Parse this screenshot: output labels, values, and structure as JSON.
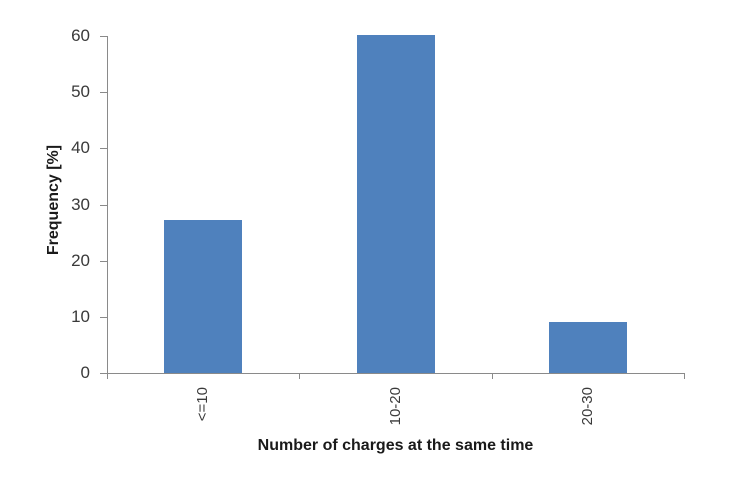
{
  "chart_data": {
    "type": "bar",
    "title": "",
    "categories": [
      "<=10",
      "10-20",
      "20-30"
    ],
    "values": [
      27.3,
      60.2,
      9.1
    ],
    "xlabel": "Number of charges at the same time",
    "ylabel": "Frequency [%]",
    "ylim": [
      0,
      60
    ],
    "yticks": [
      0,
      10,
      20,
      30,
      40,
      50,
      60
    ],
    "grid": false,
    "legend": false,
    "x_tick_label_rotation": -90,
    "bar_color": "#4F81BD",
    "axis_color": "#8A8A8A",
    "tick_label_color": "#3A3A3A",
    "axis_title_color": "#1A1A1A",
    "background": "#FFFFFF"
  }
}
